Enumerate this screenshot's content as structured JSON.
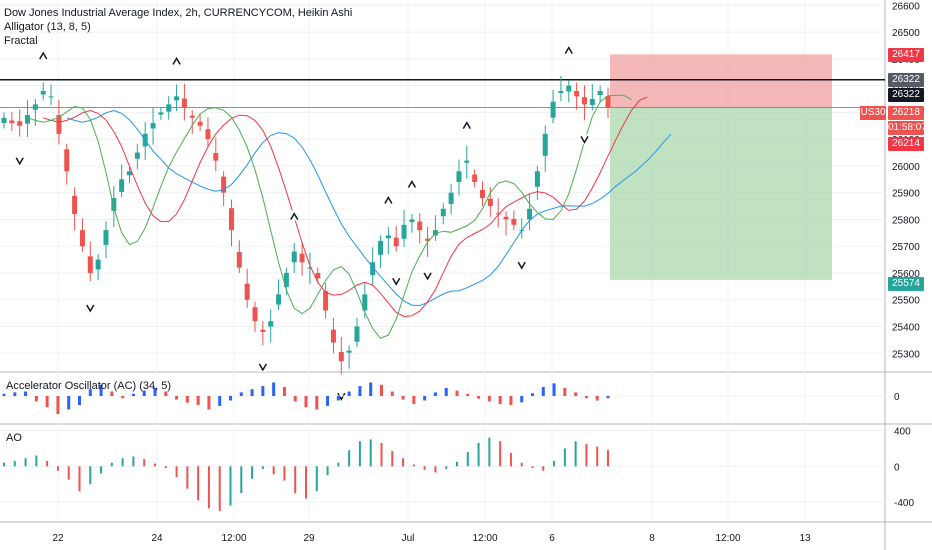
{
  "chart_title": "Dow Jones Industrial Average Index, 2h, CURRENCYCOM, Heikin Ashi",
  "indicators": {
    "alligator": "Alligator (13, 8, 5)",
    "fractal": "Fractal",
    "ac": "Accelerator Oscillator (AC) (34, 5)",
    "ao": "AO"
  },
  "badges": {
    "target_high": "26417",
    "resistance": "26322",
    "last_price": "26322",
    "symbol": "US30",
    "current": "26218",
    "countdown": "01:58:07",
    "ma": "26214",
    "target_low": "25574"
  },
  "colors": {
    "up": "#26a69a",
    "down": "#ef5350",
    "jaw": "#2196f3",
    "teeth": "#f23645",
    "lips": "#4caf50",
    "stop_zone": "#ef9a9a",
    "target_zone": "#a5d6a7",
    "grid": "#eef0f3",
    "axis_text": "#131722"
  },
  "chart_data": [
    {
      "type": "candlestick",
      "title": "Dow Jones Industrial Average Index, 2h, CURRENCYCOM, Heikin Ashi",
      "x_ticks": [
        "22",
        "24",
        "12:00",
        "29",
        "Jul",
        "12:00",
        "6",
        "8",
        "12:00",
        "13"
      ],
      "y_ticks": [
        25300,
        25400,
        25500,
        25600,
        25700,
        25800,
        25900,
        26000,
        26100,
        26200,
        26300,
        26400,
        26500,
        26600
      ],
      "ylim": [
        25230,
        26620
      ],
      "horizontal_line": 26322,
      "position": {
        "entry": 26218,
        "stop": 26417,
        "target": 25574
      },
      "candles_close": [
        26180,
        26160,
        26150,
        26190,
        26230,
        26280,
        26260,
        26120,
        25980,
        25820,
        25700,
        25600,
        25650,
        25760,
        25880,
        25950,
        25980,
        26050,
        26120,
        26160,
        26200,
        26230,
        26260,
        26220,
        26180,
        26150,
        26100,
        26020,
        25900,
        25760,
        25620,
        25500,
        25420,
        25380,
        25420,
        25520,
        25600,
        25680,
        25640,
        25620,
        25580,
        25460,
        25340,
        25270,
        25310,
        25400,
        25520,
        25640,
        25720,
        25740,
        25700,
        25780,
        25800,
        25760,
        25720,
        25760,
        25840,
        25900,
        25980,
        26020,
        25940,
        25880,
        25850,
        25820,
        25800,
        25780,
        25760,
        25840,
        25980,
        26120,
        26240,
        26280,
        26300,
        26260,
        26230,
        26250,
        26280,
        26218
      ]
    },
    {
      "type": "bar",
      "title": "Accelerator Oscillator (AC) (34, 5)",
      "y_ticks": [
        0
      ],
      "values": [
        5,
        8,
        10,
        -12,
        -25,
        -40,
        -30,
        -20,
        15,
        25,
        10,
        -5,
        5,
        12,
        18,
        10,
        -8,
        -15,
        -20,
        -30,
        -22,
        -10,
        8,
        15,
        22,
        30,
        20,
        -12,
        -25,
        -30,
        -22,
        -10,
        10,
        22,
        30,
        25,
        10,
        -8,
        -18,
        -10,
        8,
        18,
        12,
        5,
        -6,
        -12,
        -18,
        -20,
        -14,
        6,
        20,
        28,
        18,
        8,
        -5,
        -10,
        -5
      ]
    },
    {
      "type": "bar",
      "title": "AO",
      "y_ticks": [
        -400,
        0,
        400
      ],
      "ylim": [
        -600,
        450
      ],
      "values": [
        40,
        60,
        90,
        120,
        60,
        -50,
        -150,
        -280,
        -200,
        -80,
        40,
        90,
        110,
        80,
        30,
        -20,
        -120,
        -250,
        -380,
        -470,
        -500,
        -440,
        -300,
        -140,
        -30,
        -90,
        -160,
        -300,
        -360,
        -280,
        -100,
        40,
        180,
        280,
        300,
        260,
        170,
        90,
        20,
        -40,
        -70,
        -30,
        50,
        160,
        260,
        320,
        280,
        150,
        40,
        -20,
        -50,
        60,
        200,
        280,
        250,
        220,
        180
      ]
    }
  ]
}
